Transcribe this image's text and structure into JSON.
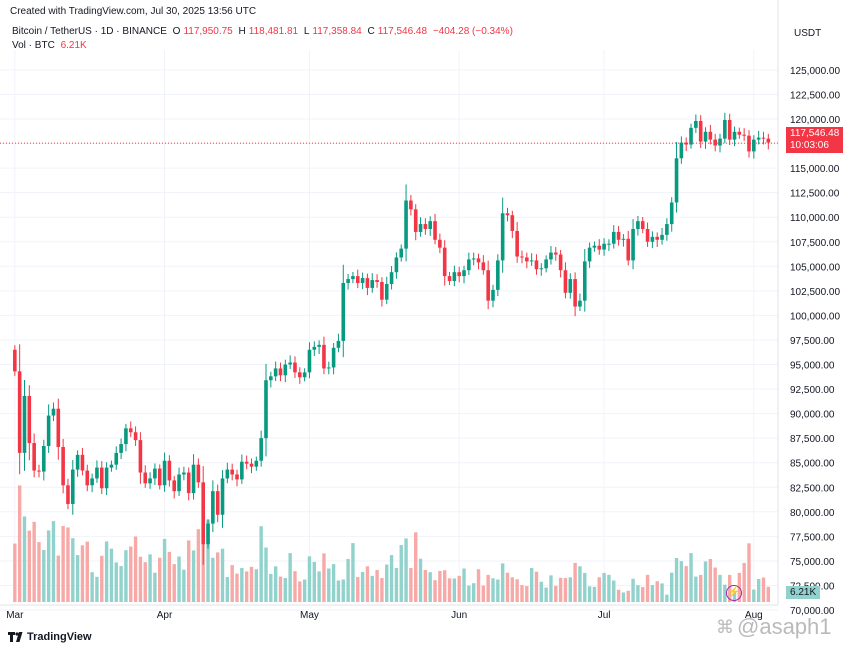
{
  "header": {
    "created": "Created with TradingView.com, Jul 30, 2025 13:56 UTC",
    "symbol": "Bitcoin / TetherUS · 1D · BINANCE",
    "open_label": "O",
    "open": "117,950.75",
    "high_label": "H",
    "high": "118,481.81",
    "low_label": "L",
    "low": "117,358.84",
    "close_label": "C",
    "close": "117,546.48",
    "change": "−404.28 (−0.34%)",
    "vol_label": "Vol · BTC",
    "vol_value": "6.21K"
  },
  "currency": "USDT",
  "last_price": {
    "value": "117,546.48",
    "countdown": "10:03:06",
    "price": 117546.48
  },
  "last_volume": "6.21K",
  "brand": "TradingView",
  "watermark": "@asaph1",
  "colors": {
    "up": "#089981",
    "down": "#f23645",
    "up_vol": "#92d2cc",
    "down_vol": "#f7a9a7"
  },
  "icons": {
    "logo": "tradingview-logo-icon",
    "bolt": "lightning-icon"
  },
  "chart_data": {
    "type": "candlestick",
    "y_axis": {
      "min": 70000,
      "max": 125000,
      "ticks": [
        125000,
        122500,
        120000,
        117500,
        115000,
        112500,
        110000,
        107500,
        105000,
        102500,
        100000,
        97500,
        95000,
        92500,
        90000,
        87500,
        85000,
        82500,
        80000,
        77500,
        75000,
        72500,
        70000
      ],
      "tick_labels": [
        "125,000.00",
        "122,500.00",
        "120,000.00",
        "117,500.00",
        "115,000.00",
        "112,500.00",
        "110,000.00",
        "107,500.00",
        "105,000.00",
        "102,500.00",
        "100,000.00",
        "97,500.00",
        "95,000.00",
        "92,500.00",
        "90,000.00",
        "87,500.00",
        "85,000.00",
        "82,500.00",
        "80,000.00",
        "77,500.00",
        "75,000.00",
        "72,500.00",
        "70,000.00"
      ]
    },
    "x_axis": {
      "labels": [
        {
          "text": "Mar",
          "index": 0
        },
        {
          "text": "Apr",
          "index": 31
        },
        {
          "text": "May",
          "index": 61
        },
        {
          "text": "Jun",
          "index": 92
        },
        {
          "text": "Jul",
          "index": 122
        },
        {
          "text": "Aug",
          "index": 153
        }
      ]
    },
    "start_index": -1,
    "closes": [
      94300,
      86000,
      91800,
      87000,
      84200,
      84100,
      86700,
      89800,
      90500,
      86600,
      82700,
      80800,
      84300,
      85800,
      84200,
      82700,
      83400,
      84500,
      82400,
      84500,
      84800,
      86000,
      86900,
      88500,
      88100,
      87300,
      84000,
      82900,
      83400,
      84400,
      82700,
      85200,
      83200,
      82100,
      83800,
      84000,
      81900,
      84800,
      83000,
      76700,
      78800,
      82100,
      79700,
      83400,
      84300,
      83800,
      83300,
      85100,
      84900,
      84600,
      85200,
      87500,
      93400,
      93800,
      94600,
      93900,
      95000,
      95200,
      94200,
      93700,
      94200,
      96500,
      96800,
      97000,
      94600,
      94700,
      96700,
      97400,
      103300,
      103700,
      104000,
      103300,
      103800,
      102800,
      103600,
      103400,
      101600,
      103200,
      104400,
      105900,
      106800,
      111700,
      110800,
      108500,
      109300,
      108800,
      109600,
      107700,
      106900,
      104000,
      103500,
      104400,
      104000,
      104600,
      105700,
      105800,
      105400,
      104600,
      101500,
      102600,
      105600,
      110400,
      110200,
      108600,
      106000,
      105900,
      105500,
      105600,
      104700,
      104800,
      105700,
      106400,
      106200,
      104600,
      102300,
      103700,
      100900,
      101500,
      105500,
      106900,
      107100,
      106700,
      107300,
      107300,
      108500,
      107700,
      107800,
      105600,
      108800,
      109600,
      108800,
      107500,
      108000,
      107700,
      108200,
      109300,
      111500,
      116000,
      117600,
      117400,
      119100,
      119800,
      117700,
      118700,
      117900,
      117300,
      118000,
      119900,
      117900,
      118700,
      118400,
      118300,
      116700,
      117900,
      118100,
      118000,
      117600
    ],
    "volumes": [
      23900,
      47700,
      35000,
      29200,
      32800,
      24500,
      21300,
      29300,
      33100,
      19000,
      31100,
      30500,
      26100,
      19200,
      23200,
      24700,
      12200,
      10300,
      18900,
      24800,
      21800,
      16200,
      14700,
      21200,
      22700,
      26800,
      18500,
      16300,
      19500,
      12000,
      18100,
      25800,
      20500,
      15500,
      18600,
      13200,
      25200,
      21100,
      29800,
      38100,
      33700,
      18100,
      20300,
      21800,
      10200,
      15100,
      11600,
      13900,
      12500,
      14400,
      13400,
      31000,
      22300,
      11500,
      14600,
      10400,
      9800,
      20000,
      12600,
      8400,
      9200,
      18700,
      16400,
      12500,
      19900,
      13700,
      15500,
      8800,
      9200,
      17600,
      24100,
      10200,
      12300,
      14600,
      10700,
      13100,
      9800,
      15300,
      19200,
      13900,
      23300,
      26000,
      13900,
      28500,
      17700,
      13100,
      12200,
      8900,
      12700,
      13000,
      9700,
      9600,
      10700,
      13700,
      6700,
      7700,
      13400,
      6700,
      11100,
      9700,
      9200,
      15800,
      12000,
      10100,
      9300,
      6900,
      6500,
      13900,
      12400,
      8300,
      5900,
      10900,
      6600,
      9900,
      9800,
      10100,
      16000,
      14600,
      11900,
      6400,
      6200,
      10100,
      11900,
      11100,
      8800,
      5000,
      3900,
      4600,
      9500,
      6900,
      6100,
      11100,
      6900,
      8500,
      7600,
      3000,
      12000,
      18000,
      16700,
      14700,
      20000,
      10400,
      11100,
      16600,
      17600,
      14100,
      11100,
      7100,
      11100,
      4100,
      11900,
      16000,
      24000,
      5100,
      9400,
      10000,
      6210
    ],
    "vol_scale_max": 45000
  }
}
